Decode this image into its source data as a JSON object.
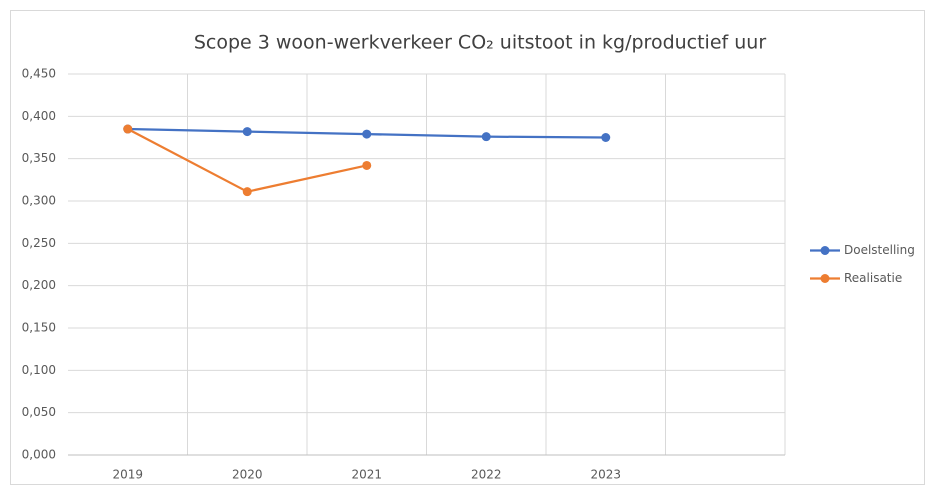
{
  "chart_data": {
    "type": "line",
    "title": "Scope 3 woon-werkverkeer CO₂ uitstoot in kg/productief uur",
    "categories": [
      "2019",
      "2020",
      "2021",
      "2022",
      "2023",
      null
    ],
    "series": [
      {
        "name": "Doelstelling",
        "color": "#4472c4",
        "values": [
          0.385,
          0.382,
          0.379,
          0.376,
          0.375,
          null
        ]
      },
      {
        "name": "Realisatie",
        "color": "#ed7d31",
        "values": [
          0.385,
          0.311,
          0.342,
          null,
          null,
          null
        ]
      }
    ],
    "ylim": [
      0,
      0.45
    ],
    "yticks": [
      {
        "value": 0,
        "label": "0,000"
      },
      {
        "value": 0.05,
        "label": "0,050"
      },
      {
        "value": 0.1,
        "label": "0,100"
      },
      {
        "value": 0.15,
        "label": "0,150"
      },
      {
        "value": 0.2,
        "label": "0,200"
      },
      {
        "value": 0.25,
        "label": "0,250"
      },
      {
        "value": 0.3,
        "label": "0,300"
      },
      {
        "value": 0.35,
        "label": "0,350"
      },
      {
        "value": 0.4,
        "label": "0,400"
      },
      {
        "value": 0.45,
        "label": "0,450"
      }
    ],
    "grid": true,
    "legend": "right"
  }
}
